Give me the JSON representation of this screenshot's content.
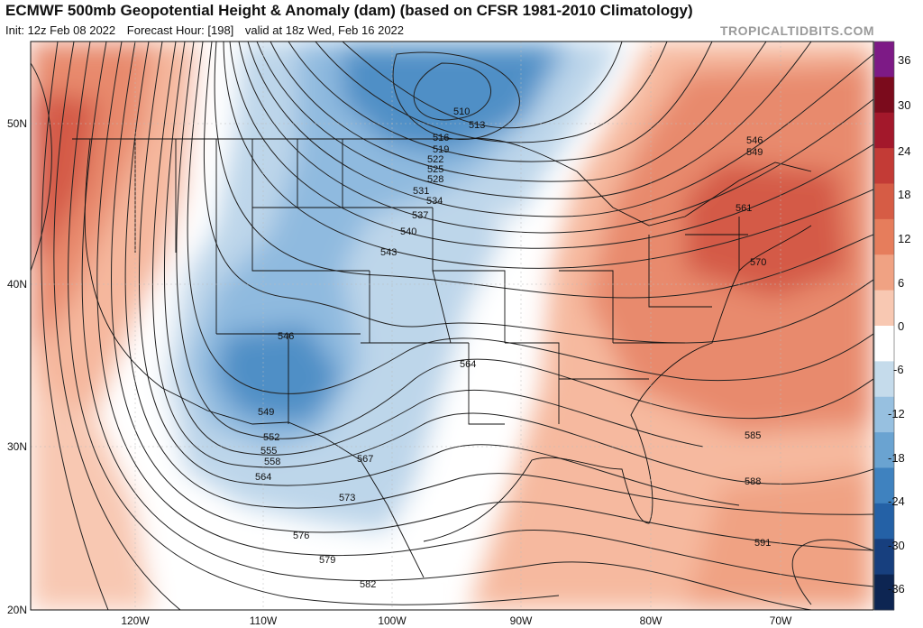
{
  "header": {
    "title": "ECMWF 500mb Geopotential Height & Anomaly (dam) (based on CFSR 1981-2010 Climatology)",
    "init": "Init: 12z Feb 08 2022",
    "forecast_hour": "Forecast Hour: [198]",
    "valid": "valid at 18z Wed, Feb 16 2022",
    "watermark": "TROPICALTIDBITS.COM"
  },
  "axes": {
    "lat_labels": [
      "50N",
      "40N",
      "30N",
      "20N"
    ],
    "lon_labels": [
      "120W",
      "110W",
      "100W",
      "90W",
      "80W",
      "70W"
    ]
  },
  "colorbar": {
    "ticks": [
      "36",
      "30",
      "24",
      "18",
      "12",
      "6",
      "0",
      "-6",
      "-12",
      "-18",
      "-24",
      "-30",
      "-36"
    ],
    "colors": [
      "#7d1a86",
      "#7b0b1c",
      "#a3182b",
      "#c33b36",
      "#d65c45",
      "#e67d5c",
      "#f0a283",
      "#f8c8b2",
      "#ffffff",
      "#c5dbeb",
      "#97c0e0",
      "#6aa3d1",
      "#3f82bf",
      "#2461a6",
      "#173f7e",
      "#0d2552"
    ]
  },
  "contours": [
    {
      "label": "510"
    },
    {
      "label": "513"
    },
    {
      "label": "516"
    },
    {
      "label": "519"
    },
    {
      "label": "522"
    },
    {
      "label": "525"
    },
    {
      "label": "528"
    },
    {
      "label": "531"
    },
    {
      "label": "534"
    },
    {
      "label": "537"
    },
    {
      "label": "540"
    },
    {
      "label": "543"
    },
    {
      "label": "546"
    },
    {
      "label": "549"
    },
    {
      "label": "552"
    },
    {
      "label": "555"
    },
    {
      "label": "558"
    },
    {
      "label": "564"
    },
    {
      "label": "567"
    },
    {
      "label": "573"
    },
    {
      "label": "576"
    },
    {
      "label": "579"
    },
    {
      "label": "582"
    },
    {
      "label": "546"
    },
    {
      "label": "549"
    },
    {
      "label": "561"
    },
    {
      "label": "570"
    },
    {
      "label": "564"
    },
    {
      "label": "585"
    },
    {
      "label": "588"
    },
    {
      "label": "591"
    }
  ]
}
